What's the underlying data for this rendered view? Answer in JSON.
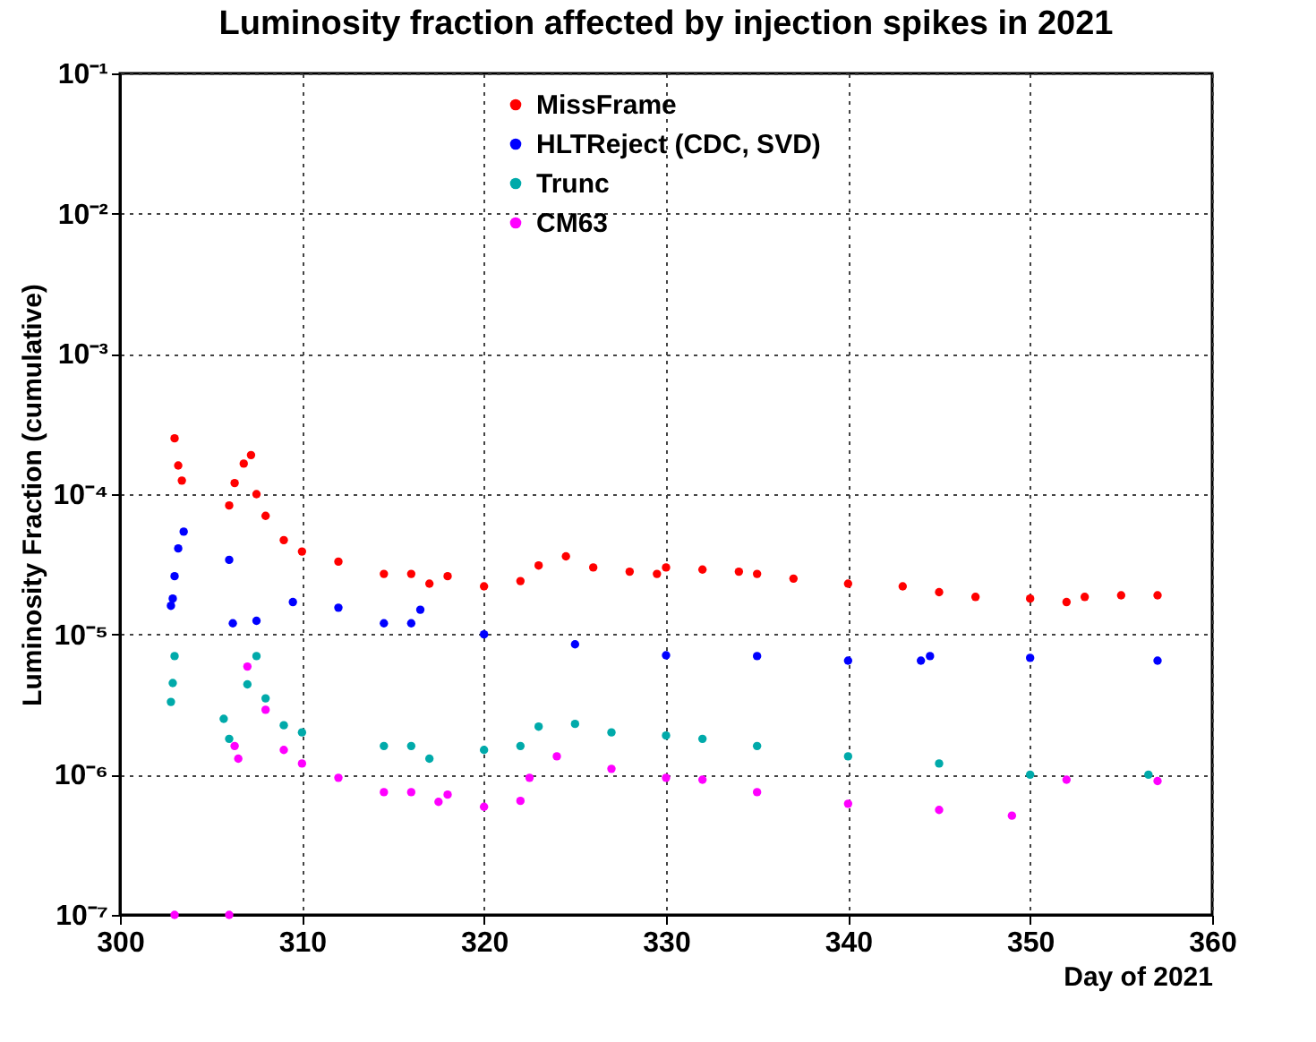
{
  "chart_data": {
    "type": "scatter",
    "title": "Luminosity fraction affected by injection spikes in 2021",
    "xlabel": "Day of 2021",
    "ylabel": "Luminosity Fraction (cumulative)",
    "xlim": [
      300,
      360
    ],
    "xticks": [
      300,
      310,
      320,
      330,
      340,
      350,
      360
    ],
    "ylim": [
      1e-07,
      0.1
    ],
    "yticks": [
      {
        "value": 1e-07,
        "label": "10⁻⁷"
      },
      {
        "value": 1e-06,
        "label": "10⁻⁶"
      },
      {
        "value": 1e-05,
        "label": "10⁻⁵"
      },
      {
        "value": 0.0001,
        "label": "10⁻⁴"
      },
      {
        "value": 0.001,
        "label": "10⁻³"
      },
      {
        "value": 0.01,
        "label": "10⁻²"
      },
      {
        "value": 0.1,
        "label": "10⁻¹"
      }
    ],
    "log": "y",
    "grid": true,
    "legend": "top",
    "marker": "circle",
    "series": [
      {
        "name": "MissFrame",
        "color": "#ff0000",
        "x": [
          303,
          303.2,
          303.4,
          306,
          306.3,
          306.8,
          307.2,
          307.5,
          308,
          309,
          310,
          312,
          314.5,
          316,
          317,
          318,
          320,
          322,
          323,
          324.5,
          326,
          328,
          329.5,
          330,
          332,
          334,
          335,
          337,
          340,
          343,
          345,
          347,
          350,
          352,
          353,
          355,
          357
        ],
        "values": [
          0.00025,
          0.00016,
          0.000125,
          8.3e-05,
          0.00012,
          0.000165,
          0.00019,
          0.0001,
          7e-05,
          4.7e-05,
          3.9e-05,
          3.3e-05,
          2.7e-05,
          2.7e-05,
          2.3e-05,
          2.6e-05,
          2.2e-05,
          2.4e-05,
          3.1e-05,
          3.6e-05,
          3e-05,
          2.8e-05,
          2.7e-05,
          3e-05,
          2.9e-05,
          2.8e-05,
          2.7e-05,
          2.5e-05,
          2.3e-05,
          2.2e-05,
          2e-05,
          1.85e-05,
          1.8e-05,
          1.7e-05,
          1.85e-05,
          1.9e-05,
          1.9e-05
        ]
      },
      {
        "name": "HLTReject (CDC, SVD)",
        "color": "#0000ff",
        "x": [
          302.8,
          302.9,
          303,
          303.2,
          303.5,
          306,
          306.2,
          307.5,
          309.5,
          312,
          314.5,
          316,
          316.5,
          320,
          325,
          330,
          335,
          340,
          344,
          344.5,
          350,
          357
        ],
        "values": [
          1.6e-05,
          1.8e-05,
          2.6e-05,
          4.1e-05,
          5.4e-05,
          3.4e-05,
          1.2e-05,
          1.25e-05,
          1.7e-05,
          1.55e-05,
          1.2e-05,
          1.2e-05,
          1.5e-05,
          1e-05,
          8.5e-06,
          7.1e-06,
          7e-06,
          6.5e-06,
          6.5e-06,
          7e-06,
          6.8e-06,
          6.5e-06
        ]
      },
      {
        "name": "Trunc",
        "color": "#00aaaa",
        "x": [
          302.8,
          302.9,
          303,
          305.7,
          306,
          307,
          307.5,
          308,
          309,
          310,
          314.5,
          316,
          317,
          320,
          322,
          323,
          325,
          327,
          330,
          332,
          335,
          340,
          345,
          350,
          356.5
        ],
        "values": [
          3.3e-06,
          4.5e-06,
          7e-06,
          2.5e-06,
          1.8e-06,
          4.4e-06,
          7e-06,
          3.5e-06,
          2.25e-06,
          2e-06,
          1.6e-06,
          1.6e-06,
          1.3e-06,
          1.5e-06,
          1.6e-06,
          2.2e-06,
          2.3e-06,
          2e-06,
          1.9e-06,
          1.8e-06,
          1.6e-06,
          1.35e-06,
          1.2e-06,
          1e-06,
          1e-06
        ]
      },
      {
        "name": "CM63",
        "color": "#ff00ff",
        "x": [
          303,
          306,
          306.3,
          306.5,
          307,
          308,
          309,
          310,
          312,
          314.5,
          316,
          317.5,
          318,
          320,
          322,
          322.5,
          324,
          327,
          330,
          332,
          335,
          340,
          345,
          349,
          352,
          357
        ],
        "values": [
          1e-07,
          1e-07,
          1.6e-06,
          1.3e-06,
          5.9e-06,
          2.9e-06,
          1.5e-06,
          1.2e-06,
          9.5e-07,
          7.5e-07,
          7.5e-07,
          6.4e-07,
          7.2e-07,
          5.9e-07,
          6.5e-07,
          9.5e-07,
          1.35e-06,
          1.1e-06,
          9.5e-07,
          9.2e-07,
          7.5e-07,
          6.2e-07,
          5.6e-07,
          5.1e-07,
          9.2e-07,
          9e-07
        ]
      }
    ]
  }
}
